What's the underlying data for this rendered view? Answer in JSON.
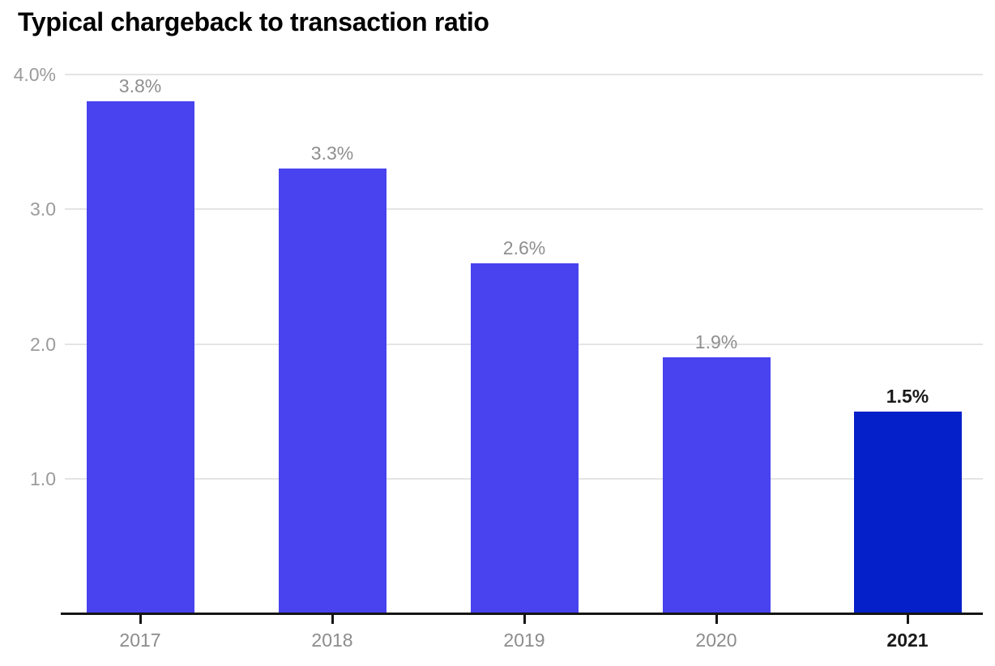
{
  "chart_data": {
    "type": "bar",
    "title": "Typical chargeback to transaction ratio",
    "categories": [
      "2017",
      "2018",
      "2019",
      "2020",
      "2021"
    ],
    "values": [
      3.8,
      3.3,
      2.6,
      1.9,
      1.5
    ],
    "bar_labels": [
      "3.8%",
      "3.3%",
      "2.6%",
      "1.9%",
      "1.5%"
    ],
    "highlight_index": 4,
    "xlabel": "",
    "ylabel": "",
    "ylim": [
      0,
      4.0
    ],
    "yticks": [
      {
        "value": 4.0,
        "label": "4.0%"
      },
      {
        "value": 3.0,
        "label": "3.0"
      },
      {
        "value": 2.0,
        "label": "2.0"
      },
      {
        "value": 1.0,
        "label": "1.0"
      }
    ],
    "grid": true,
    "legend": false,
    "colors": {
      "bar": "#4842ef",
      "highlight_bar": "#0520c8",
      "value_label_gray": "#8f8f8f",
      "value_label_dark": "#1a1a1a",
      "ytick_label": "#9b9b9b",
      "xtick_label": "#8c8c8c",
      "xtick_label_dark": "#1a1a1a",
      "gridline": "#e4e4e4",
      "axis_line": "#151515"
    }
  }
}
